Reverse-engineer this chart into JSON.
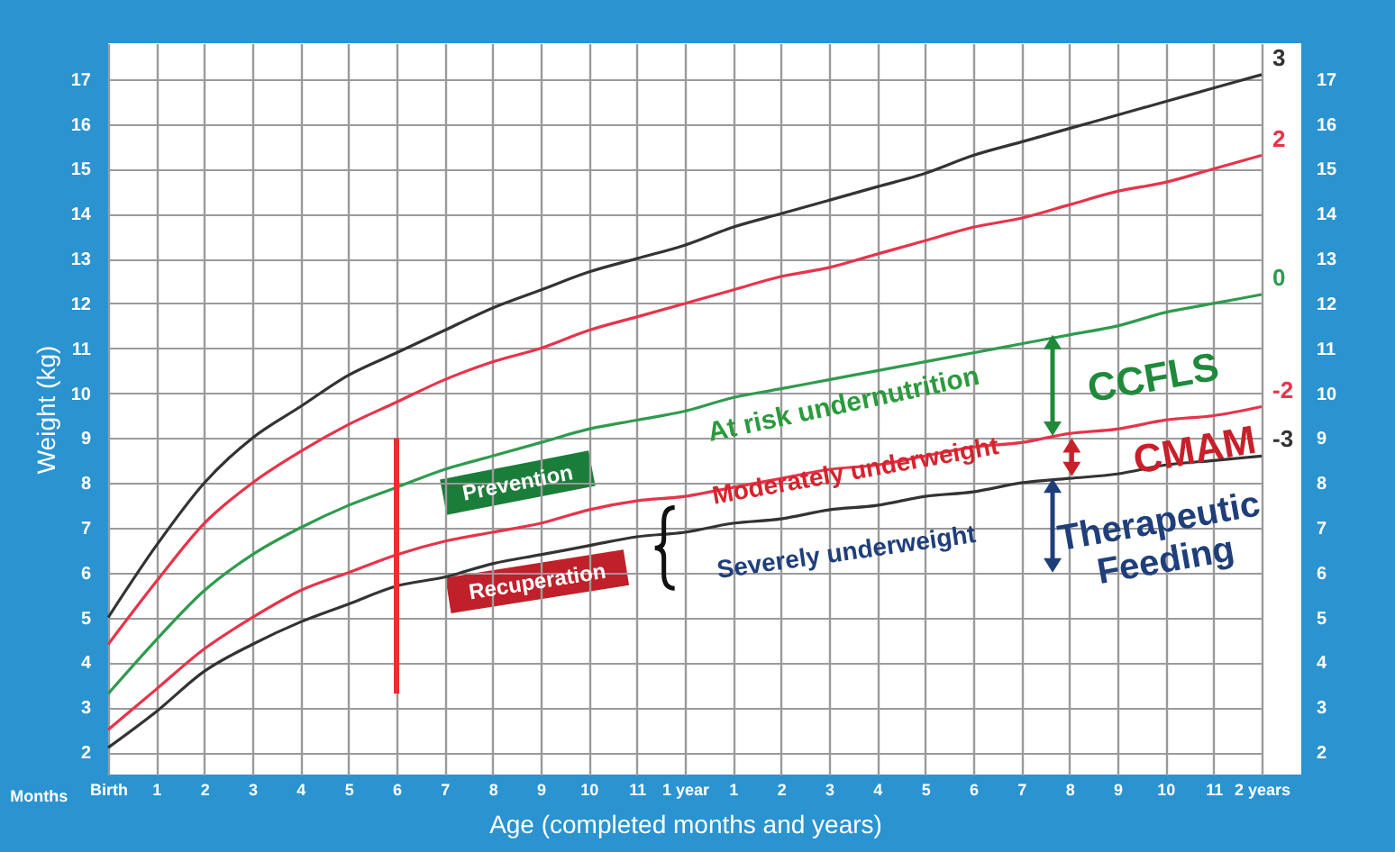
{
  "chart_data": {
    "type": "line",
    "xlabel": "Age (completed months and years)",
    "ylabel": "Weight (kg)",
    "categories": [
      "Birth",
      "1",
      "2",
      "3",
      "4",
      "5",
      "6",
      "7",
      "8",
      "9",
      "10",
      "11",
      "1 year",
      "1",
      "2",
      "3",
      "4",
      "5",
      "6",
      "7",
      "8",
      "9",
      "10",
      "11",
      "2 years"
    ],
    "ylim": [
      1.5,
      17.8
    ],
    "y2lim": [
      1.5,
      17.8
    ],
    "yticks": [
      2,
      3,
      4,
      5,
      6,
      7,
      8,
      9,
      10,
      11,
      12,
      13,
      14,
      15,
      16,
      17
    ],
    "y2ticks": [
      2,
      3,
      4,
      5,
      6,
      7,
      8,
      9,
      10,
      11,
      12,
      13,
      14,
      15,
      16,
      17
    ],
    "grid": true,
    "series": [
      {
        "name": "3",
        "color": "#333333",
        "values": [
          5.0,
          6.6,
          8.0,
          9.0,
          9.7,
          10.4,
          10.9,
          11.4,
          11.9,
          12.3,
          12.7,
          13.0,
          13.3,
          13.7,
          14.0,
          14.3,
          14.6,
          14.9,
          15.3,
          15.6,
          15.9,
          16.2,
          16.5,
          16.8,
          17.1
        ]
      },
      {
        "name": "2",
        "color": "#e8334a",
        "values": [
          4.4,
          5.8,
          7.1,
          8.0,
          8.7,
          9.3,
          9.8,
          10.3,
          10.7,
          11.0,
          11.4,
          11.7,
          12.0,
          12.3,
          12.6,
          12.8,
          13.1,
          13.4,
          13.7,
          13.9,
          14.2,
          14.5,
          14.7,
          15.0,
          15.3
        ]
      },
      {
        "name": "0",
        "color": "#2e9b4e",
        "values": [
          3.3,
          4.5,
          5.6,
          6.4,
          7.0,
          7.5,
          7.9,
          8.3,
          8.6,
          8.9,
          9.2,
          9.4,
          9.6,
          9.9,
          10.1,
          10.3,
          10.5,
          10.7,
          10.9,
          11.1,
          11.3,
          11.5,
          11.8,
          12.0,
          12.2
        ]
      },
      {
        "name": "-2",
        "color": "#e8334a",
        "values": [
          2.5,
          3.4,
          4.3,
          5.0,
          5.6,
          6.0,
          6.4,
          6.7,
          6.9,
          7.1,
          7.4,
          7.6,
          7.7,
          7.9,
          8.1,
          8.3,
          8.4,
          8.6,
          8.8,
          8.9,
          9.1,
          9.2,
          9.4,
          9.5,
          9.7
        ]
      },
      {
        "name": "-3",
        "color": "#333333",
        "values": [
          2.1,
          2.9,
          3.8,
          4.4,
          4.9,
          5.3,
          5.7,
          5.9,
          6.2,
          6.4,
          6.6,
          6.8,
          6.9,
          7.1,
          7.2,
          7.4,
          7.5,
          7.7,
          7.8,
          8.0,
          8.1,
          8.2,
          8.4,
          8.5,
          8.6
        ]
      },
      {
        "color": "#ee2d2d",
        "x": [
          "6",
          "6"
        ],
        "values": [
          3.3,
          9.0
        ]
      }
    ],
    "annotations": [
      "Prevention",
      "Recuperation",
      "At risk undernutrition",
      "Moderately underweight",
      "Severely underweight",
      "CCFLS",
      "CMAM",
      "Therapeutic Feeding",
      "Months"
    ]
  }
}
